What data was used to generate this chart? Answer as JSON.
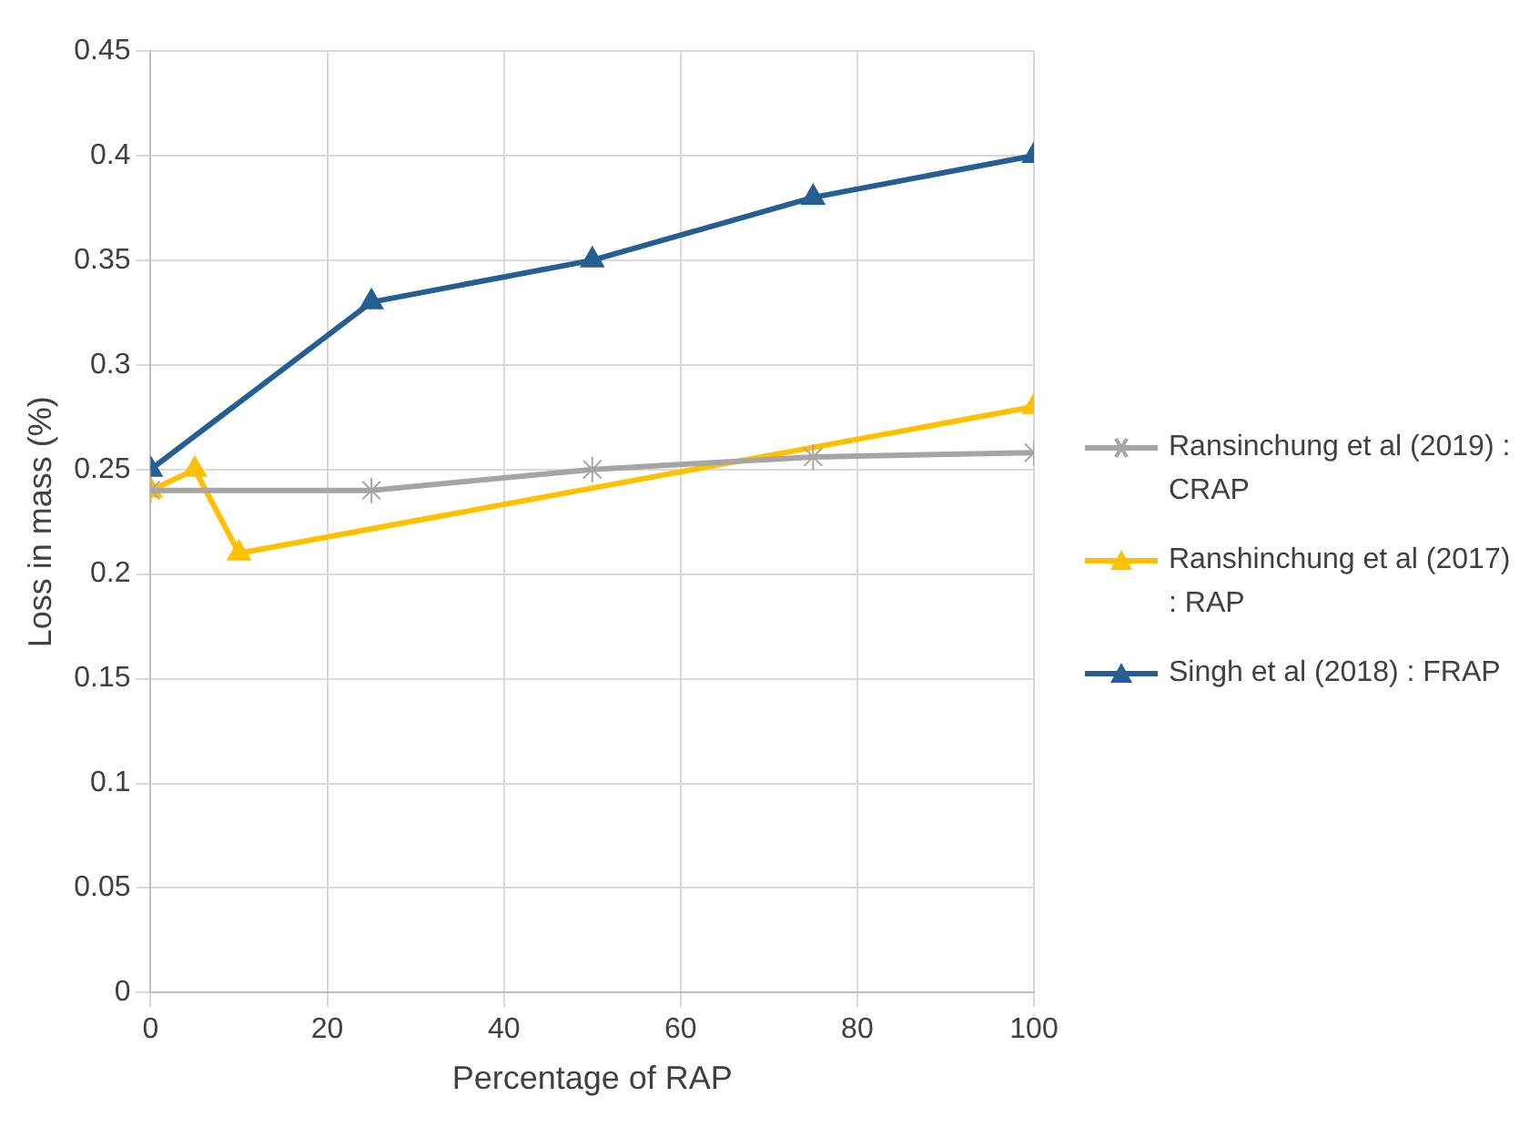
{
  "chart_data": {
    "type": "line",
    "xlabel": "Percentage of RAP",
    "ylabel": "Loss in mass (%)",
    "xlim": [
      0,
      100
    ],
    "xticks": [
      0,
      20,
      40,
      60,
      80,
      100
    ],
    "ylim": [
      0,
      0.45
    ],
    "yticks": [
      0,
      0.05,
      0.1,
      0.15,
      0.2,
      0.25,
      0.3,
      0.35,
      0.4,
      0.45
    ],
    "grid": true,
    "legend": "right",
    "line_style": "solid",
    "series": [
      {
        "name": "Ransinchung et al (2019) : CRAP",
        "color": "#a5a5a5",
        "marker": "cross",
        "x": [
          0,
          25,
          50,
          75,
          100
        ],
        "values": [
          0.24,
          0.24,
          0.25,
          0.256,
          0.258
        ]
      },
      {
        "name": "Ranshinchung et al (2017) : RAP",
        "color": "#ffc000",
        "marker": "triangle",
        "x": [
          0,
          5,
          10,
          100
        ],
        "values": [
          0.24,
          0.25,
          0.21,
          0.28
        ]
      },
      {
        "name": "Singh et al (2018) : FRAP",
        "color": "#255e91",
        "marker": "triangle",
        "x": [
          0,
          25,
          50,
          75,
          100
        ],
        "values": [
          0.25,
          0.33,
          0.35,
          0.38,
          0.4
        ]
      }
    ]
  }
}
